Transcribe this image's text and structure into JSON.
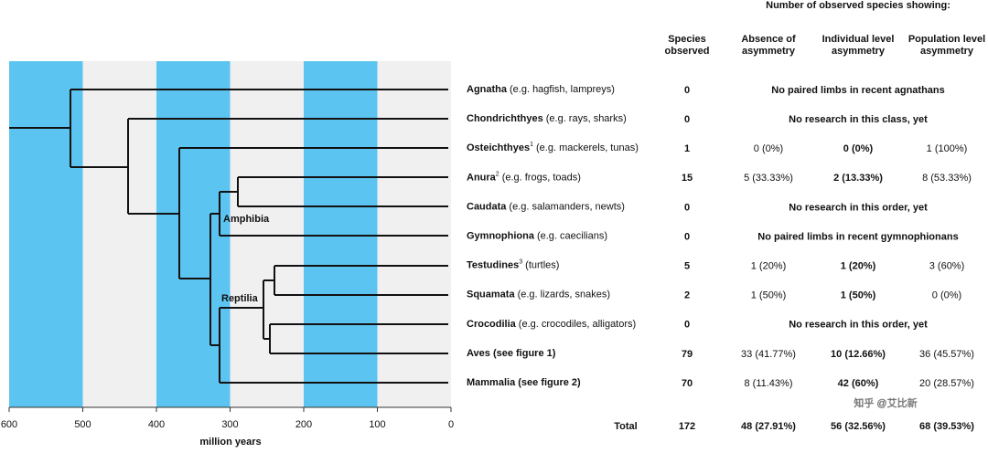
{
  "axis": {
    "label": "million years",
    "xlim": [
      600,
      0
    ],
    "xticks": [
      600,
      500,
      400,
      300,
      200,
      100,
      0
    ]
  },
  "header": {
    "group": "Number of observed species showing:",
    "columns": [
      [
        "Species",
        "observed"
      ],
      [
        "Absence of",
        "asymmetry"
      ],
      [
        "Individual level",
        "asymmetry"
      ],
      [
        "Population level",
        "asymmetry"
      ]
    ]
  },
  "clades": [
    "Amphibia",
    "Reptilia"
  ],
  "rows": [
    {
      "taxon": "Agnatha",
      "example": "(e.g. hagfish, lampreys)",
      "species": "0",
      "note": "No paired limbs in recent agnathans"
    },
    {
      "taxon": "Chondrichthyes",
      "example": "(e.g. rays, sharks)",
      "species": "0",
      "note": "No research in this class, yet"
    },
    {
      "taxon": "Osteichthyes",
      "sup": "1",
      "example": "(e.g. mackerels, tunas)",
      "species": "1",
      "cells": [
        "0 (0%)",
        "0 (0%)",
        "1 (100%)"
      ]
    },
    {
      "taxon": "Anura",
      "sup": "2",
      "example": "(e.g. frogs, toads)",
      "species": "15",
      "cells": [
        "5 (33.33%)",
        "2 (13.33%)",
        "8 (53.33%)"
      ]
    },
    {
      "taxon": "Caudata",
      "example": "(e.g. salamanders, newts)",
      "species": "0",
      "note": "No research in this order, yet"
    },
    {
      "taxon": "Gymnophiona",
      "example": "(e.g. caecilians)",
      "species": "0",
      "note": "No paired limbs in recent gymnophionans"
    },
    {
      "taxon": "Testudines",
      "sup": "3",
      "example": "(turtles)",
      "species": "5",
      "cells": [
        "1 (20%)",
        "1 (20%)",
        "3 (60%)"
      ]
    },
    {
      "taxon": "Squamata",
      "example": "(e.g. lizards, snakes)",
      "species": "2",
      "cells": [
        "1 (50%)",
        "1 (50%)",
        "0 (0%)"
      ]
    },
    {
      "taxon": "Crocodilia",
      "example": "(e.g. crocodiles, alligators)",
      "species": "0",
      "note": "No research in this order, yet"
    },
    {
      "taxon": "Aves (see figure 1)",
      "species": "79",
      "cells": [
        "33 (41.77%)",
        "10 (12.66%)",
        "36 (45.57%)"
      ]
    },
    {
      "taxon": "Mammalia (see figure 2)",
      "species": "70",
      "cells": [
        "8 (11.43%)",
        "42 (60%)",
        "20 (28.57%)"
      ]
    }
  ],
  "total": {
    "label": "Total",
    "species": "172",
    "cells": [
      "48 (27.91%)",
      "56 (32.56%)",
      "68 (39.53%)"
    ]
  },
  "watermark": "知乎 @艾比新"
}
